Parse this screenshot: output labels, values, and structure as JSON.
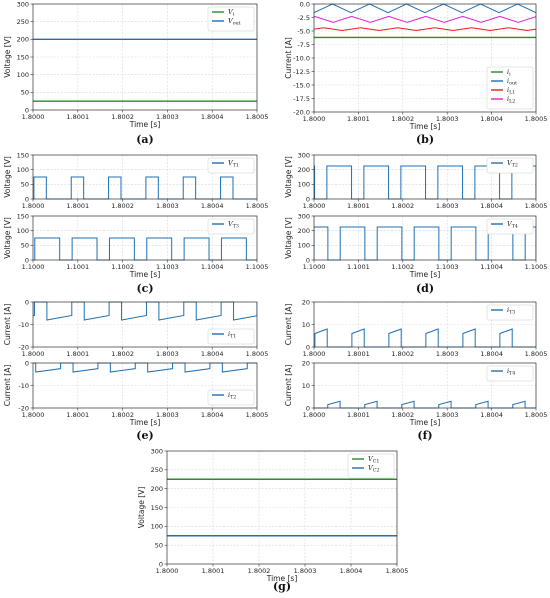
{
  "colors": {
    "green": "#2a8a2a",
    "blue": "#1f6fb4",
    "red": "#e8191c",
    "magenta": "#e020d0",
    "grid": "#d8d8d8"
  },
  "chart_data": [
    {
      "id": "a",
      "caption": "(a)",
      "type": "line",
      "xlabel": "Time [s]",
      "ylabel": "Voltage [V]",
      "xlim": [
        1.8,
        1.8005
      ],
      "ylim": [
        0,
        300
      ],
      "xticks": [
        "1.8000",
        "1.8001",
        "1.8002",
        "1.8003",
        "1.8004",
        "1.8005"
      ],
      "yticks": [
        "0",
        "50",
        "100",
        "150",
        "200",
        "250",
        "300"
      ],
      "grid": true,
      "legend_position": "top-right",
      "series": [
        {
          "name": "V_i",
          "label_main": "V",
          "label_sub": "i",
          "color": "green",
          "kind": "const",
          "value": 25
        },
        {
          "name": "V_out",
          "label_main": "V",
          "label_sub": "out",
          "color": "blue",
          "kind": "const",
          "value": 200
        }
      ]
    },
    {
      "id": "b",
      "caption": "(b)",
      "type": "line",
      "xlabel": "Time [s]",
      "ylabel": "Current [A]",
      "xlim": [
        1.8,
        1.8005
      ],
      "ylim": [
        -20,
        0
      ],
      "xticks": [
        "1.8000",
        "1.8001",
        "1.8002",
        "1.8003",
        "1.8004",
        "1.8005"
      ],
      "yticks": [
        "0.0",
        "-2.5",
        "-5.0",
        "-7.5",
        "-10.0",
        "-12.5",
        "-15.0",
        "-17.5",
        "-20.0"
      ],
      "grid": true,
      "legend_position": "bottom-right",
      "series": [
        {
          "name": "i_i",
          "label_main": "i",
          "label_sub": "i",
          "color": "green",
          "kind": "const",
          "value": -6.2
        },
        {
          "name": "i_out",
          "label_main": "i",
          "label_sub": "out",
          "color": "blue",
          "kind": "tri",
          "min": -1.6,
          "max": 0,
          "period": 8.333e-05,
          "phase": 0
        },
        {
          "name": "i_L1",
          "label_main": "i",
          "label_sub": "L1",
          "color": "red",
          "kind": "tri",
          "min": -4.9,
          "max": -4.4,
          "period": 8.333e-05,
          "phase": 2e-05
        },
        {
          "name": "i_L2",
          "label_main": "i",
          "label_sub": "L2",
          "color": "magenta",
          "kind": "tri",
          "min": -3.4,
          "max": -2.3,
          "period": 8.333e-05,
          "phase": 4e-05
        }
      ]
    },
    {
      "id": "c1",
      "type": "line",
      "ylabel": "Voltage [V]",
      "xlim": [
        1.8,
        1.8005
      ],
      "ylim": [
        0,
        150
      ],
      "xticks": [
        "1.8000",
        "1.8001",
        "1.8002",
        "1.8003",
        "1.8004",
        "1.8005"
      ],
      "yticks": [
        "0",
        "50",
        "100",
        "150"
      ],
      "grid": true,
      "legend_position": "top-right",
      "series": [
        {
          "name": "V_T1",
          "label_main": "V",
          "label_sub": "T1",
          "color": "blue",
          "kind": "pulse",
          "low": 0,
          "high": 75,
          "period": 8.333e-05,
          "duty": 0.333,
          "phase": 2e-06
        }
      ]
    },
    {
      "id": "c2",
      "caption": "(c)",
      "type": "line",
      "xlabel": "Time [s]",
      "ylabel": "Voltage [V]",
      "xlim": [
        1.1,
        1.1005
      ],
      "ylim": [
        0,
        150
      ],
      "xticks": [
        "1.1000",
        "1.1001",
        "1.1002",
        "1.1003",
        "1.1004",
        "1.1005"
      ],
      "yticks": [
        "0",
        "50",
        "100",
        "150"
      ],
      "grid": true,
      "legend_position": "top-right",
      "series": [
        {
          "name": "V_T3",
          "label_main": "V",
          "label_sub": "T3",
          "color": "blue",
          "kind": "pulse",
          "low": 0,
          "high": 75,
          "period": 8.333e-05,
          "duty": 0.667,
          "phase": 4e-06
        }
      ]
    },
    {
      "id": "d1",
      "type": "line",
      "ylabel": "Voltage [V]",
      "xlim": [
        1.8,
        1.8005
      ],
      "ylim": [
        0,
        300
      ],
      "xticks": [
        "1.8000",
        "1.8001",
        "1.8002",
        "1.8003",
        "1.8004",
        "1.8005"
      ],
      "yticks": [
        "0",
        "100",
        "200",
        "300"
      ],
      "grid": true,
      "legend_position": "top-right",
      "series": [
        {
          "name": "V_T2",
          "label_main": "V",
          "label_sub": "T2",
          "color": "blue",
          "kind": "pulse",
          "low": 0,
          "high": 225,
          "period": 8.333e-05,
          "duty": 0.667,
          "phase": 2.9e-05
        }
      ]
    },
    {
      "id": "d2",
      "caption": "(d)",
      "type": "line",
      "xlabel": "Time [s]",
      "ylabel": "Voltage [V]",
      "xlim": [
        1.1,
        1.1005
      ],
      "ylim": [
        0,
        300
      ],
      "xticks": [
        "1.1000",
        "1.1001",
        "1.1002",
        "1.1003",
        "1.1004",
        "1.1005"
      ],
      "yticks": [
        "0",
        "100",
        "200",
        "300"
      ],
      "grid": true,
      "legend_position": "top-right",
      "series": [
        {
          "name": "V_T4",
          "label_main": "V",
          "label_sub": "T4",
          "color": "blue",
          "kind": "pulse",
          "low": 0,
          "high": 225,
          "period": 8.333e-05,
          "duty": 0.667,
          "phase": 5.9e-05
        }
      ]
    },
    {
      "id": "e1",
      "type": "line",
      "ylabel": "Current [A]",
      "xlim": [
        1.8,
        1.8005
      ],
      "ylim": [
        -20,
        0
      ],
      "xticks": [
        "1.8000",
        "1.8001",
        "1.8002",
        "1.8003",
        "1.8004",
        "1.8005"
      ],
      "yticks": [
        "0",
        "-10",
        "-20"
      ],
      "grid": true,
      "legend_position": "bottom-right",
      "series": [
        {
          "name": "i_T1",
          "label_main": "i",
          "label_sub": "T1",
          "color": "blue",
          "kind": "sawpulse",
          "off": 0,
          "start": -8,
          "end": -6,
          "period": 8.333e-05,
          "duty": 0.667,
          "phase": 3.1e-05
        }
      ]
    },
    {
      "id": "e2",
      "caption": "(e)",
      "type": "line",
      "xlabel": "Time [s]",
      "ylabel": "Current [A]",
      "xlim": [
        1.8,
        1.8005
      ],
      "ylim": [
        -20,
        0
      ],
      "xticks": [
        "1.8000",
        "1.8001",
        "1.8002",
        "1.8003",
        "1.8004",
        "1.8005"
      ],
      "yticks": [
        "0",
        "-10",
        "-20"
      ],
      "grid": true,
      "legend_position": "bottom-right",
      "series": [
        {
          "name": "i_T2",
          "label_main": "i",
          "label_sub": "T2",
          "color": "blue",
          "kind": "sawpulse",
          "off": 0,
          "start": -4,
          "end": -2.5,
          "period": 8.333e-05,
          "duty": 0.667,
          "phase": 6e-06
        }
      ]
    },
    {
      "id": "f1",
      "type": "line",
      "ylabel": "Current [A]",
      "xlim": [
        1.8,
        1.8005
      ],
      "ylim": [
        0,
        20
      ],
      "xticks": [
        "1.8000",
        "1.8001",
        "1.8002",
        "1.8003",
        "1.8004",
        "1.8005"
      ],
      "yticks": [
        "0",
        "10",
        "20"
      ],
      "grid": true,
      "legend_position": "top-right",
      "series": [
        {
          "name": "i_T3",
          "label_main": "i",
          "label_sub": "T3",
          "color": "blue",
          "kind": "sawpulse",
          "off": 0,
          "start": 6,
          "end": 8,
          "period": 8.333e-05,
          "duty": 0.333,
          "phase": 2e-06
        }
      ]
    },
    {
      "id": "f2",
      "caption": "(f)",
      "type": "line",
      "xlabel": "Time [s]",
      "ylabel": "Current [A]",
      "xlim": [
        1.8,
        1.8005
      ],
      "ylim": [
        0,
        20
      ],
      "xticks": [
        "1.8000",
        "1.8001",
        "1.8002",
        "1.8003",
        "1.8004",
        "1.8005"
      ],
      "yticks": [
        "0",
        "10",
        "20"
      ],
      "grid": true,
      "legend_position": "top-right",
      "series": [
        {
          "name": "i_T4",
          "label_main": "i",
          "label_sub": "T4",
          "color": "blue",
          "kind": "sawpulse",
          "off": 0,
          "start": 1.5,
          "end": 3,
          "period": 8.333e-05,
          "duty": 0.333,
          "phase": 3.1e-05
        }
      ]
    },
    {
      "id": "g",
      "caption": "(g)",
      "type": "line",
      "xlabel": "Time [s]",
      "ylabel": "Voltage [V]",
      "xlim": [
        1.8,
        1.8005
      ],
      "ylim": [
        0,
        300
      ],
      "xticks": [
        "1.8000",
        "1.8001",
        "1.8002",
        "1.8003",
        "1.8004",
        "1.8005"
      ],
      "yticks": [
        "0",
        "50",
        "100",
        "150",
        "200",
        "250",
        "300"
      ],
      "grid": true,
      "legend_position": "top-right",
      "series": [
        {
          "name": "V_C1",
          "label_main": "V",
          "label_sub": "C1",
          "color": "green",
          "kind": "const",
          "value": 225
        },
        {
          "name": "V_C2",
          "label_main": "V",
          "label_sub": "C2",
          "color": "blue",
          "kind": "const",
          "value": 75
        }
      ]
    }
  ]
}
